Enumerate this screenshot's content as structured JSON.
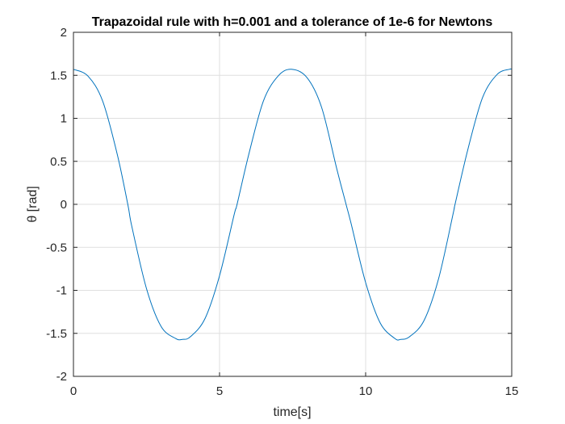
{
  "chart_data": {
    "type": "line",
    "title": "Trapazoidal rule with h=0.001 and a tolerance of 1e-6 for Newtons",
    "xlabel": "time[s]",
    "ylabel": "θ [rad]",
    "xlim": [
      0,
      15
    ],
    "ylim": [
      -2,
      2
    ],
    "xticks": [
      0,
      5,
      10,
      15
    ],
    "yticks": [
      -2,
      -1.5,
      -1,
      -0.5,
      0,
      0.5,
      1,
      1.5,
      2
    ],
    "xtick_labels": [
      "0",
      "5",
      "10",
      "15"
    ],
    "ytick_labels": [
      "-2",
      "-1.5",
      "-1",
      "-0.5",
      "0",
      "0.5",
      "1",
      "1.5",
      "2"
    ],
    "grid": true,
    "series": [
      {
        "color": "#0072bd",
        "x": [
          0,
          0.5,
          1.0,
          1.5,
          1.86,
          2.0,
          2.5,
          3.0,
          3.5,
          3.73,
          4.0,
          4.5,
          5.0,
          5.5,
          5.6,
          6.0,
          6.5,
          7.0,
          7.46,
          8.0,
          8.5,
          9.0,
          9.33,
          9.5,
          10.0,
          10.5,
          11.0,
          11.2,
          11.5,
          12.0,
          12.5,
          13.0,
          13.06,
          13.5,
          14.0,
          14.5,
          14.92,
          15.0
        ],
        "y": [
          1.57,
          1.49,
          1.2,
          0.58,
          0.0,
          -0.26,
          -0.98,
          -1.42,
          -1.56,
          -1.57,
          -1.54,
          -1.33,
          -0.83,
          -0.12,
          0.0,
          0.58,
          1.2,
          1.49,
          1.57,
          1.47,
          1.12,
          0.43,
          0.0,
          -0.22,
          -0.91,
          -1.38,
          -1.56,
          -1.57,
          -1.54,
          -1.35,
          -0.86,
          -0.1,
          0.0,
          0.64,
          1.24,
          1.51,
          1.57,
          1.57
        ]
      }
    ]
  }
}
